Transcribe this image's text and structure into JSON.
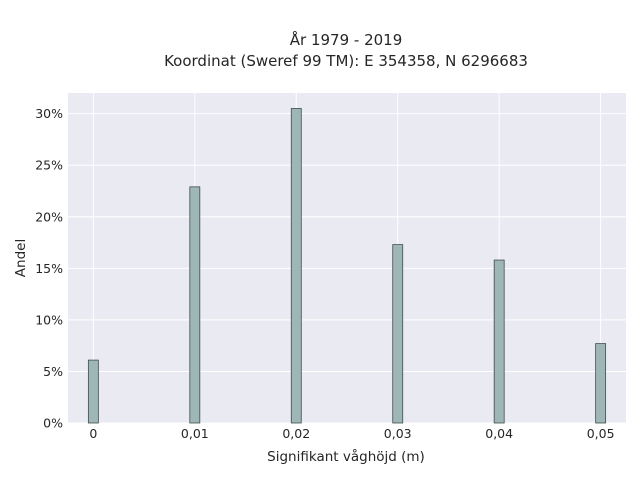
{
  "chart_data": {
    "type": "bar",
    "title_lines": [
      "År 1979 - 2019",
      "Koordinat (Sweref 99 TM): E 354358, N 6296683"
    ],
    "xlabel": "Signifikant våghöjd (m)",
    "ylabel": "Andel",
    "x": [
      0,
      0.01,
      0.02,
      0.03,
      0.04,
      0.05
    ],
    "values": [
      6.1,
      22.9,
      30.5,
      17.3,
      15.8,
      7.7
    ],
    "xticks": [
      "0",
      "0,01",
      "0,02",
      "0,03",
      "0,04",
      "0,05"
    ],
    "yticks": [
      "0%",
      "5%",
      "10%",
      "15%",
      "20%",
      "25%",
      "30%"
    ],
    "ylim": [
      0,
      32
    ],
    "xlim": [
      -0.0025,
      0.0525
    ],
    "grid": true,
    "bar_color": "#9fb6b6",
    "bar_edge_color": "#3f4d4d",
    "plot_background": "#eaeaf2"
  }
}
